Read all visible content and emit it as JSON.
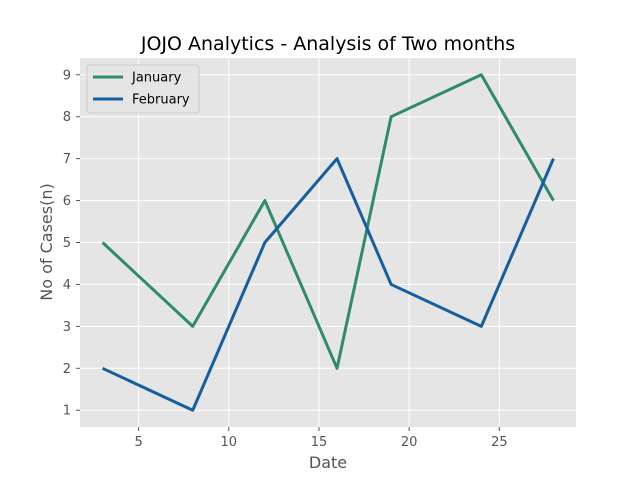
{
  "chart_data": {
    "type": "line",
    "title": "JOJO Analytics - Analysis of Two months",
    "xlabel": "Date",
    "ylabel": "No of Cases(n)",
    "x": [
      3,
      8,
      12,
      16,
      19,
      24,
      28
    ],
    "series": [
      {
        "name": "January",
        "color": "#2e8b6e",
        "values": [
          5,
          3,
          6,
          2,
          8,
          9,
          6
        ]
      },
      {
        "name": "February",
        "color": "#155fa0",
        "values": [
          2,
          1,
          5,
          7,
          4,
          3,
          7
        ]
      }
    ],
    "xticks": [
      5,
      10,
      15,
      20,
      25
    ],
    "yticks": [
      1,
      2,
      3,
      4,
      5,
      6,
      7,
      8,
      9
    ],
    "xlim": [
      1.75,
      29.25
    ],
    "ylim": [
      0.6,
      9.4
    ],
    "grid": true,
    "legend": "top-left",
    "background": "#e5e5e5",
    "grid_color": "#ffffff"
  }
}
